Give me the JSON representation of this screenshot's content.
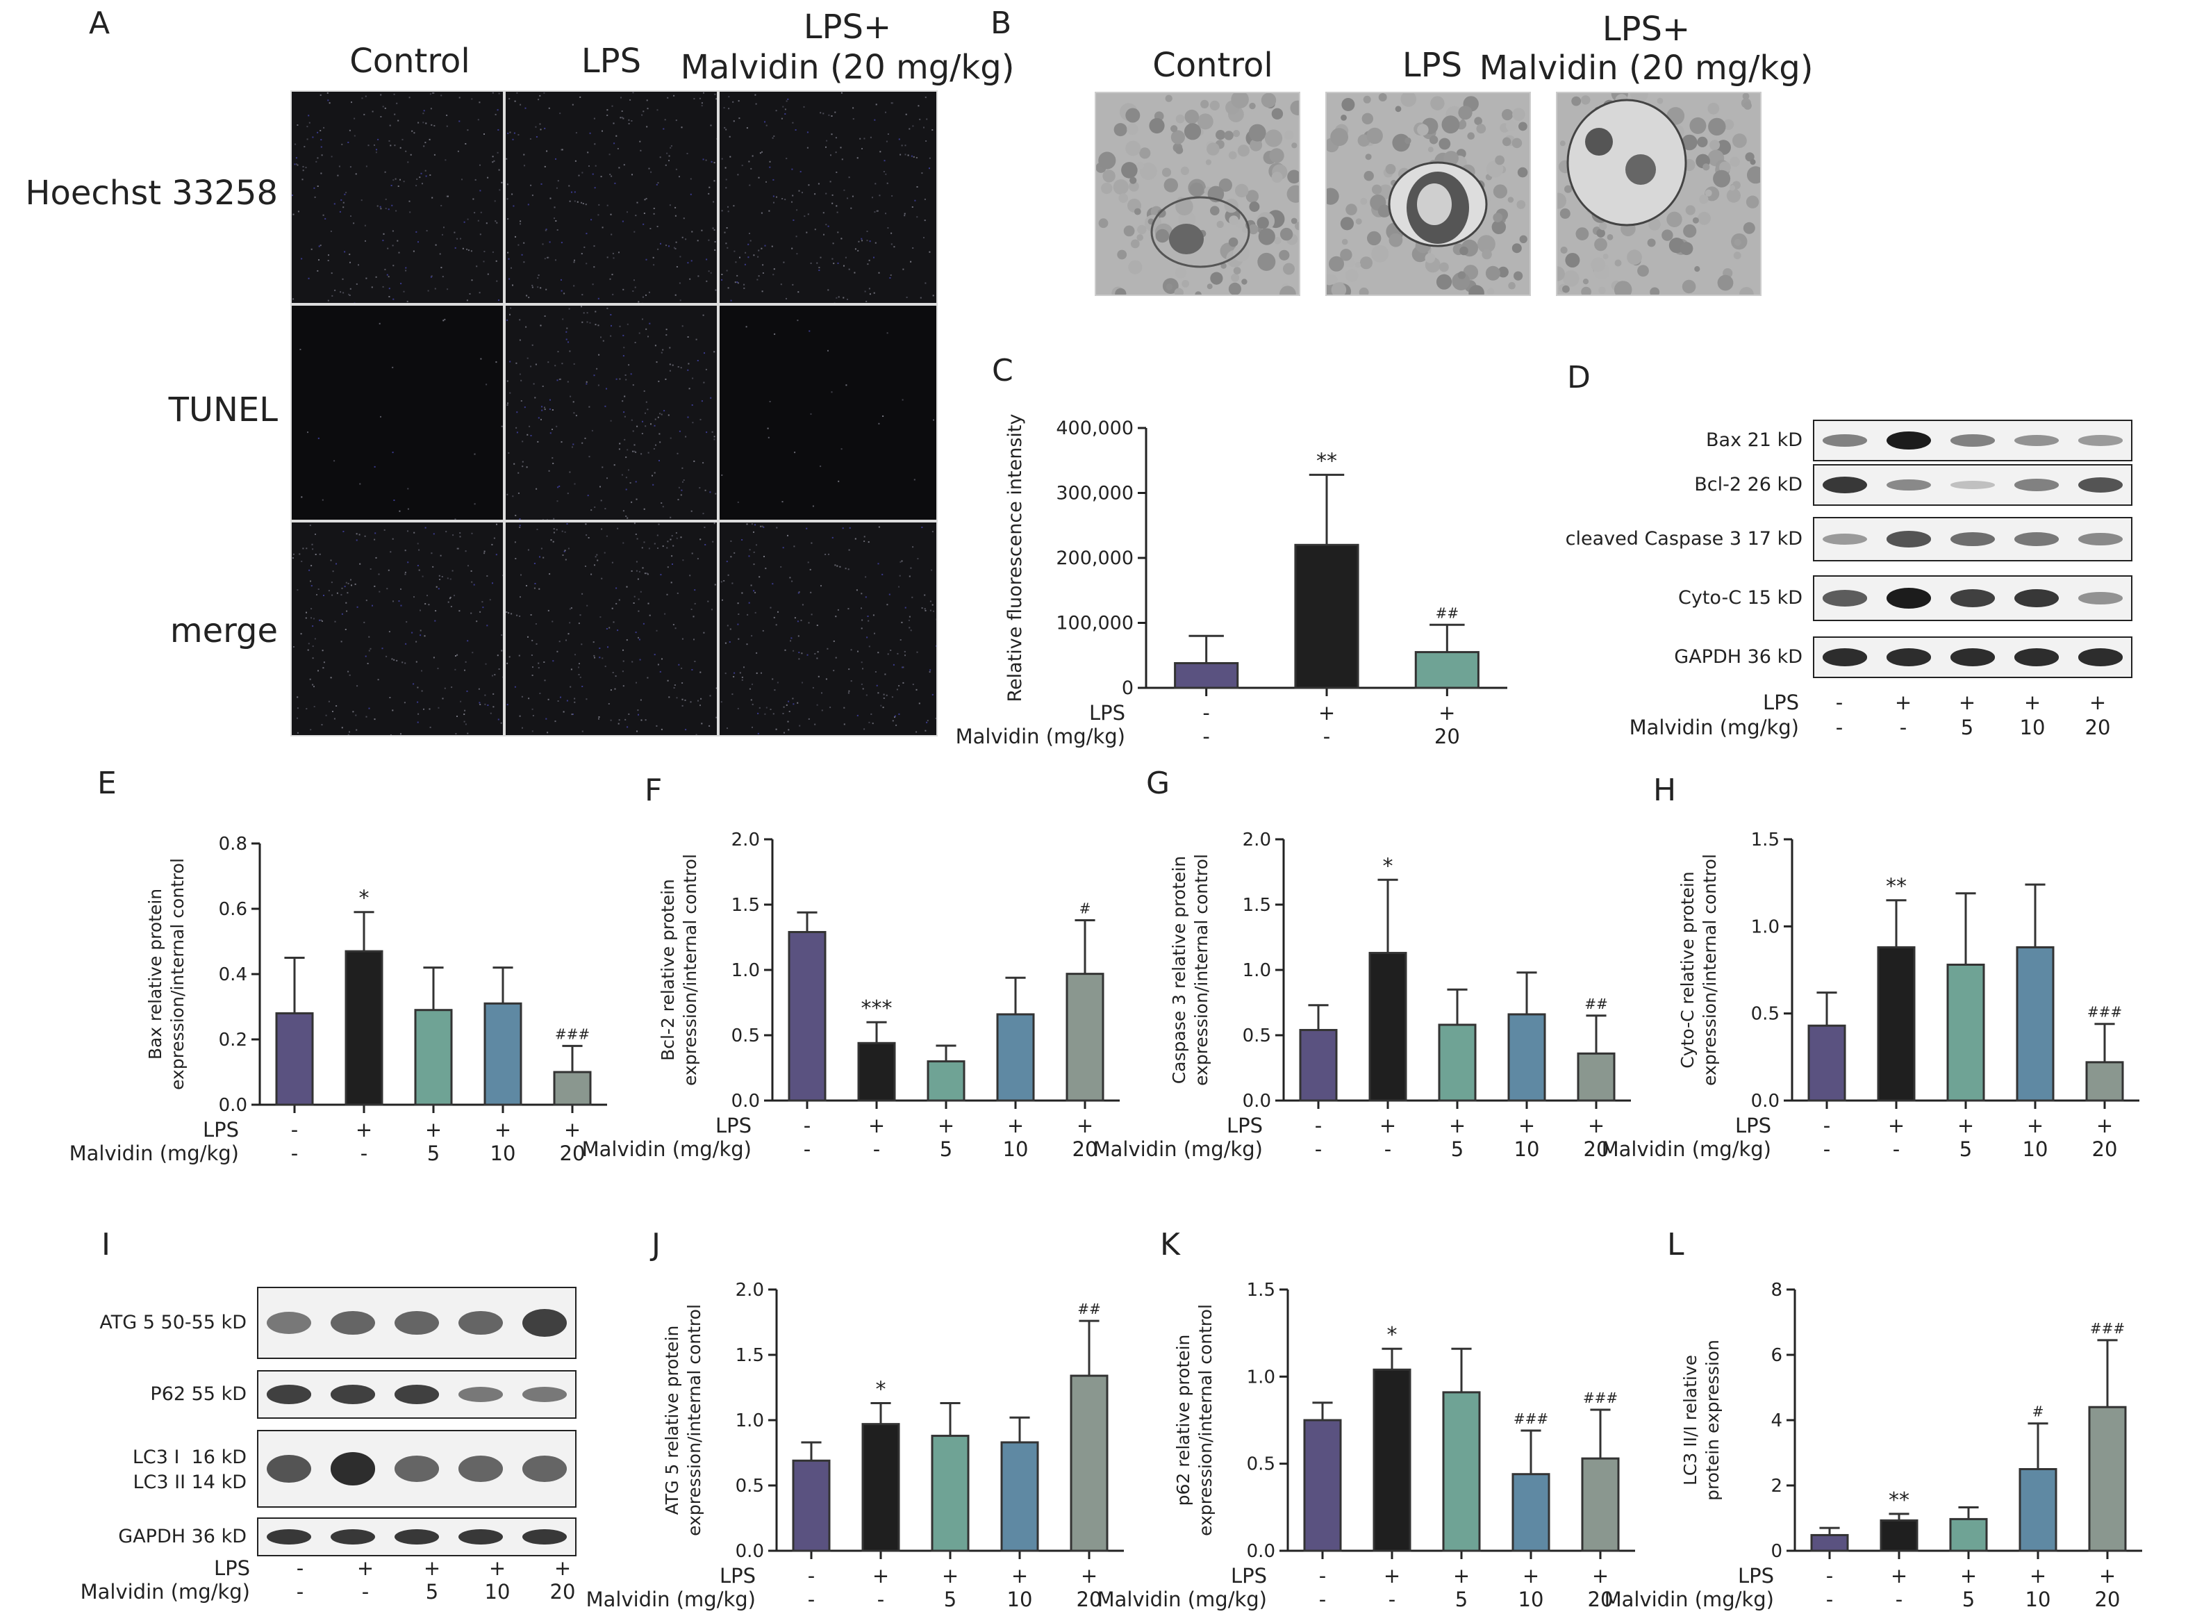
{
  "panels": {
    "A": "A",
    "B": "B",
    "C": "C",
    "D": "D",
    "E": "E",
    "F": "F",
    "G": "G",
    "H": "H",
    "I": "I",
    "J": "J",
    "K": "K",
    "L": "L"
  },
  "panel_a": {
    "columns": [
      "Control",
      "LPS",
      "LPS+\nMalvidin (20 mg/kg)"
    ],
    "rows": [
      "Hoechst 33258",
      "TUNEL",
      "merge"
    ]
  },
  "panel_b": {
    "columns": [
      "Control",
      "LPS",
      "LPS+\nMalvidin (20 mg/kg)"
    ]
  },
  "treatment": {
    "lps_label": "LPS",
    "malvidin_label": "Malvidin (mg/kg)",
    "lps_5": [
      "-",
      "+",
      "+",
      "+",
      "+"
    ],
    "mal_5": [
      "-",
      "-",
      "5",
      "10",
      "20"
    ],
    "lps_3": [
      "-",
      "+",
      "+"
    ],
    "mal_3": [
      "-",
      "-",
      "20"
    ]
  },
  "blot_d": {
    "labels": [
      "Bax 21 kD",
      "Bcl-2 26 kD",
      "cleaved Caspase 3 17 kD",
      "Cyto-C 15 kD",
      "GAPDH 36 kD"
    ],
    "intensity": [
      [
        0.45,
        1.0,
        0.45,
        0.35,
        0.3
      ],
      [
        0.85,
        0.4,
        0.1,
        0.45,
        0.7
      ],
      [
        0.3,
        0.7,
        0.55,
        0.5,
        0.4
      ],
      [
        0.65,
        1.0,
        0.8,
        0.85,
        0.35
      ],
      [
        0.9,
        0.9,
        0.9,
        0.9,
        0.9
      ]
    ]
  },
  "blot_i": {
    "labels": [
      "ATG 5 50-55 kD",
      "P62 55 kD",
      "LC3 I  16 kD\nLC3 II 14 kD",
      "GAPDH 36 kD"
    ],
    "intensity": [
      [
        0.5,
        0.6,
        0.6,
        0.6,
        0.8
      ],
      [
        0.8,
        0.8,
        0.8,
        0.5,
        0.5
      ],
      [
        0.7,
        0.9,
        0.6,
        0.6,
        0.6
      ],
      [
        0.85,
        0.85,
        0.85,
        0.85,
        0.85
      ]
    ]
  },
  "colors": {
    "control": "#5a5280",
    "lps": "#1f1f1f",
    "mal5": "#6fa395",
    "mal10": "#5f89a3",
    "mal20": "#8a978f"
  },
  "chart_data": [
    {
      "id": "C",
      "type": "bar",
      "ylabel": "Relative fluorescence intensity",
      "ylim": [
        0,
        400000
      ],
      "ticks": [
        0,
        100000,
        200000,
        300000,
        400000
      ],
      "tick_labels": [
        "0",
        "100,000",
        "200,000",
        "300,000",
        "400,000"
      ],
      "values": [
        38000,
        220000,
        55000
      ],
      "errors": [
        42000,
        108000,
        42000
      ],
      "sig": [
        "",
        "**",
        "##"
      ]
    },
    {
      "id": "E",
      "type": "bar",
      "ylabel": "Bax relative protein\nexpression/internal control",
      "ylim": [
        0,
        0.8
      ],
      "ticks": [
        0,
        0.2,
        0.4,
        0.6,
        0.8
      ],
      "tick_labels": [
        "0.0",
        "0.2",
        "0.4",
        "0.6",
        "0.8"
      ],
      "values": [
        0.28,
        0.47,
        0.29,
        0.31,
        0.1
      ],
      "errors": [
        0.17,
        0.12,
        0.13,
        0.11,
        0.08
      ],
      "sig": [
        "",
        "*",
        "",
        "",
        "###"
      ]
    },
    {
      "id": "F",
      "type": "bar",
      "ylabel": "Bcl-2 relative protein\nexpression/internal control",
      "ylim": [
        0,
        2.0
      ],
      "ticks": [
        0,
        0.5,
        1.0,
        1.5,
        2.0
      ],
      "tick_labels": [
        "0.0",
        "0.5",
        "1.0",
        "1.5",
        "2.0"
      ],
      "values": [
        1.29,
        0.44,
        0.3,
        0.66,
        0.97
      ],
      "errors": [
        0.15,
        0.16,
        0.12,
        0.28,
        0.41
      ],
      "sig": [
        "",
        "***",
        "",
        "",
        "#"
      ]
    },
    {
      "id": "G",
      "type": "bar",
      "ylabel": "Caspase 3 relative protein\nexpression/internal control",
      "ylim": [
        0,
        2.0
      ],
      "ticks": [
        0,
        0.5,
        1.0,
        1.5,
        2.0
      ],
      "tick_labels": [
        "0.0",
        "0.5",
        "1.0",
        "1.5",
        "2.0"
      ],
      "values": [
        0.54,
        1.13,
        0.58,
        0.66,
        0.36
      ],
      "errors": [
        0.19,
        0.56,
        0.27,
        0.32,
        0.29
      ],
      "sig": [
        "",
        "*",
        "",
        "",
        "##"
      ]
    },
    {
      "id": "H",
      "type": "bar",
      "ylabel": "Cyto-C relative protein\nexpression/internal control",
      "ylim": [
        0,
        1.5
      ],
      "ticks": [
        0,
        0.5,
        1.0,
        1.5
      ],
      "tick_labels": [
        "0.0",
        "0.5",
        "1.0",
        "1.5"
      ],
      "values": [
        0.43,
        0.88,
        0.78,
        0.88,
        0.22
      ],
      "errors": [
        0.19,
        0.27,
        0.41,
        0.36,
        0.22
      ],
      "sig": [
        "",
        "**",
        "",
        "",
        "###"
      ]
    },
    {
      "id": "J",
      "type": "bar",
      "ylabel": "ATG 5 relative protein\nexpression/internal control",
      "ylim": [
        0,
        2.0
      ],
      "ticks": [
        0,
        0.5,
        1.0,
        1.5,
        2.0
      ],
      "tick_labels": [
        "0.0",
        "0.5",
        "1.0",
        "1.5",
        "2.0"
      ],
      "values": [
        0.69,
        0.97,
        0.88,
        0.83,
        1.34
      ],
      "errors": [
        0.14,
        0.16,
        0.25,
        0.19,
        0.42
      ],
      "sig": [
        "",
        "*",
        "",
        "",
        "##"
      ]
    },
    {
      "id": "K",
      "type": "bar",
      "ylabel": "p62 relative protein\nexpression/internal control",
      "ylim": [
        0,
        1.5
      ],
      "ticks": [
        0,
        0.5,
        1.0,
        1.5
      ],
      "tick_labels": [
        "0.0",
        "0.5",
        "1.0",
        "1.5"
      ],
      "values": [
        0.75,
        1.04,
        0.91,
        0.44,
        0.53
      ],
      "errors": [
        0.1,
        0.12,
        0.25,
        0.25,
        0.28
      ],
      "sig": [
        "",
        "*",
        "",
        "###",
        "###"
      ]
    },
    {
      "id": "L",
      "type": "bar",
      "ylabel": "LC3 II/I relative\nprotein expression",
      "ylim": [
        0,
        8
      ],
      "ticks": [
        0,
        2,
        4,
        6,
        8
      ],
      "tick_labels": [
        "0",
        "2",
        "4",
        "6",
        "8"
      ],
      "values": [
        0.48,
        0.93,
        0.97,
        2.5,
        4.4
      ],
      "errors": [
        0.22,
        0.2,
        0.36,
        1.4,
        2.05
      ],
      "sig": [
        "",
        "**",
        "",
        "#",
        "###"
      ]
    }
  ]
}
